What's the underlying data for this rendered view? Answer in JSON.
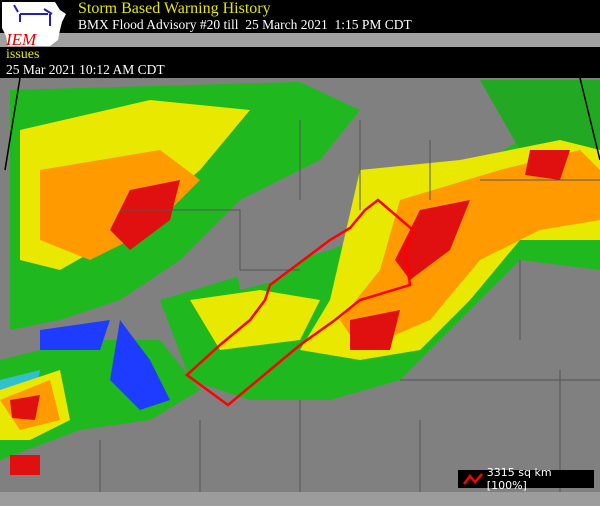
{
  "header": {
    "title": "Storm Based Warning History",
    "subtitle": "BMX Flood Advisory #20 till  25 March 2021  1:15 PM CDT",
    "logo_text": "IEM"
  },
  "event": {
    "action": "issues",
    "time": "25 Mar 2021 10:12 AM CDT"
  },
  "legend": {
    "icon": "red-polygon-line-icon",
    "area": "3315 sq km [100%]"
  },
  "colors": {
    "warning_outline": "#ff0000",
    "background": "#808080",
    "title": "#e6e600"
  }
}
